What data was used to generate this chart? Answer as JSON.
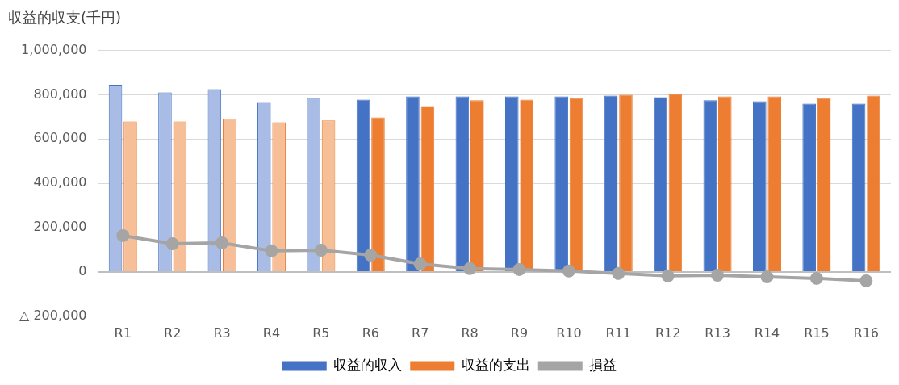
{
  "chart_data": {
    "type": "bar",
    "title": "収益的収支(千円)",
    "categories": [
      "R1",
      "R2",
      "R3",
      "R4",
      "R5",
      "R6",
      "R7",
      "R8",
      "R9",
      "R10",
      "R11",
      "R12",
      "R13",
      "R14",
      "R15",
      "R16"
    ],
    "series": [
      {
        "name": "収益的収入",
        "color": "#4472c4",
        "colors": [
          "#a9bce6",
          "#a9bce6",
          "#a9bce6",
          "#a9bce6",
          "#a9bce6",
          "#4472c4",
          "#4472c4",
          "#4472c4",
          "#4472c4",
          "#4472c4",
          "#4472c4",
          "#4472c4",
          "#4472c4",
          "#4472c4",
          "#4472c4",
          "#4472c4"
        ],
        "values": [
          845000,
          811000,
          825000,
          767000,
          785000,
          778000,
          793000,
          793000,
          793000,
          793000,
          796000,
          789000,
          775000,
          771000,
          760000,
          760000
        ]
      },
      {
        "name": "収益的支出",
        "color": "#ed7d31",
        "colors": [
          "#f6bf98",
          "#f6bf98",
          "#f6bf98",
          "#f6bf98",
          "#f6bf98",
          "#ed7d31",
          "#ed7d31",
          "#ed7d31",
          "#ed7d31",
          "#ed7d31",
          "#ed7d31",
          "#ed7d31",
          "#ed7d31",
          "#ed7d31",
          "#ed7d31",
          "#ed7d31"
        ],
        "values": [
          680000,
          680000,
          691000,
          676000,
          684000,
          698000,
          749000,
          775000,
          778000,
          785000,
          800000,
          804000,
          793000,
          793000,
          785000,
          796000
        ]
      },
      {
        "name": "損益",
        "type": "line",
        "color": "#a5a5a5",
        "values": [
          164000,
          127000,
          131000,
          95000,
          98000,
          76000,
          36000,
          15000,
          11000,
          4000,
          -7000,
          -18000,
          -15000,
          -22000,
          -29000,
          -40000
        ]
      }
    ],
    "ylim": [
      -200000,
      1000000
    ],
    "yticks": [
      {
        "value": -200000,
        "label": "△ 200,000"
      },
      {
        "value": 0,
        "label": "0"
      },
      {
        "value": 200000,
        "label": "200,000"
      },
      {
        "value": 400000,
        "label": "400,000"
      },
      {
        "value": 600000,
        "label": "600,000"
      },
      {
        "value": 800000,
        "label": "800,000"
      },
      {
        "value": 1000000,
        "label": "1,000,000"
      }
    ],
    "grid": "y",
    "legend": "bottom",
    "marker": "circle",
    "line_style": "solid"
  }
}
